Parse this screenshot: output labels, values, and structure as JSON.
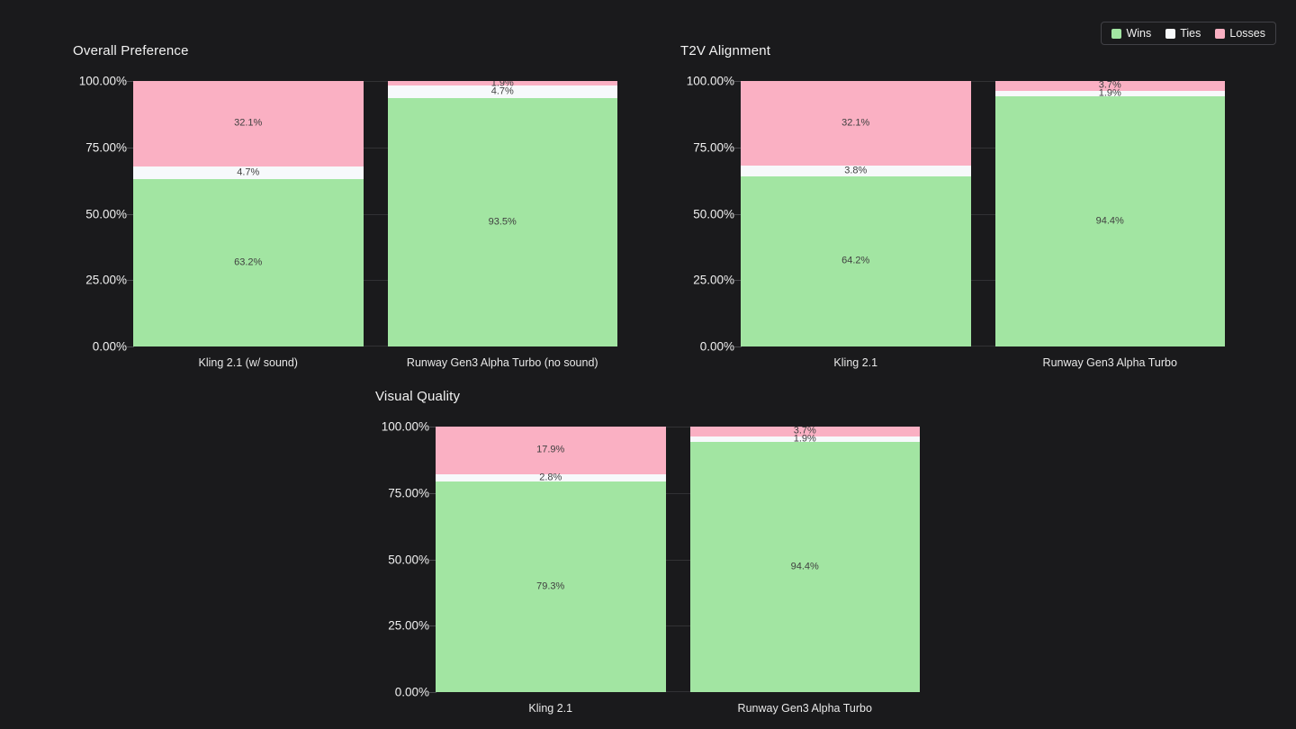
{
  "page": {
    "background": "#1a1a1c"
  },
  "legend": {
    "items": [
      {
        "label": "Wins",
        "color": "#a2e5a2"
      },
      {
        "label": "Ties",
        "color": "#f7f9fb"
      },
      {
        "label": "Losses",
        "color": "#fab0c3"
      }
    ],
    "position": "top-right"
  },
  "chart_data": [
    {
      "type": "bar",
      "stacked": true,
      "title": "Overall Preference",
      "categories": [
        "Kling 2.1 (w/ sound)",
        "Runway Gen3 Alpha Turbo (no sound)"
      ],
      "series": [
        {
          "name": "Wins",
          "values": [
            63.2,
            93.5
          ]
        },
        {
          "name": "Ties",
          "values": [
            4.7,
            4.7
          ]
        },
        {
          "name": "Losses",
          "values": [
            32.1,
            1.9
          ]
        }
      ],
      "value_labels": [
        [
          "63.2%",
          "4.7%",
          "32.1%"
        ],
        [
          "93.5%",
          "4.7%",
          "1.9%"
        ]
      ],
      "xlabel": "",
      "ylabel": "",
      "ylim": [
        0,
        100
      ],
      "grid": true,
      "yticks": [
        {
          "value": 0,
          "label": "0.00%"
        },
        {
          "value": 25,
          "label": "25.00%"
        },
        {
          "value": 50,
          "label": "50.00%"
        },
        {
          "value": 75,
          "label": "75.00%"
        },
        {
          "value": 100,
          "label": "100.00%"
        }
      ]
    },
    {
      "type": "bar",
      "stacked": true,
      "title": "T2V Alignment",
      "categories": [
        "Kling 2.1",
        "Runway Gen3 Alpha Turbo"
      ],
      "series": [
        {
          "name": "Wins",
          "values": [
            64.2,
            94.4
          ]
        },
        {
          "name": "Ties",
          "values": [
            3.8,
            1.9
          ]
        },
        {
          "name": "Losses",
          "values": [
            32.1,
            3.7
          ]
        }
      ],
      "value_labels": [
        [
          "64.2%",
          "3.8%",
          "32.1%"
        ],
        [
          "94.4%",
          "1.9%",
          "3.7%"
        ]
      ],
      "xlabel": "",
      "ylabel": "",
      "ylim": [
        0,
        100
      ],
      "grid": true,
      "yticks": [
        {
          "value": 0,
          "label": "0.00%"
        },
        {
          "value": 25,
          "label": "25.00%"
        },
        {
          "value": 50,
          "label": "50.00%"
        },
        {
          "value": 75,
          "label": "75.00%"
        },
        {
          "value": 100,
          "label": "100.00%"
        }
      ]
    },
    {
      "type": "bar",
      "stacked": true,
      "title": "Visual Quality",
      "categories": [
        "Kling 2.1",
        "Runway Gen3 Alpha Turbo"
      ],
      "series": [
        {
          "name": "Wins",
          "values": [
            79.3,
            94.4
          ]
        },
        {
          "name": "Ties",
          "values": [
            2.8,
            1.9
          ]
        },
        {
          "name": "Losses",
          "values": [
            17.9,
            3.7
          ]
        }
      ],
      "value_labels": [
        [
          "79.3%",
          "2.8%",
          "17.9%"
        ],
        [
          "94.4%",
          "1.9%",
          "3.7%"
        ]
      ],
      "xlabel": "",
      "ylabel": "",
      "ylim": [
        0,
        100
      ],
      "grid": true,
      "yticks": [
        {
          "value": 0,
          "label": "0.00%"
        },
        {
          "value": 25,
          "label": "25.00%"
        },
        {
          "value": 50,
          "label": "50.00%"
        },
        {
          "value": 75,
          "label": "75.00%"
        },
        {
          "value": 100,
          "label": "100.00%"
        }
      ]
    }
  ]
}
